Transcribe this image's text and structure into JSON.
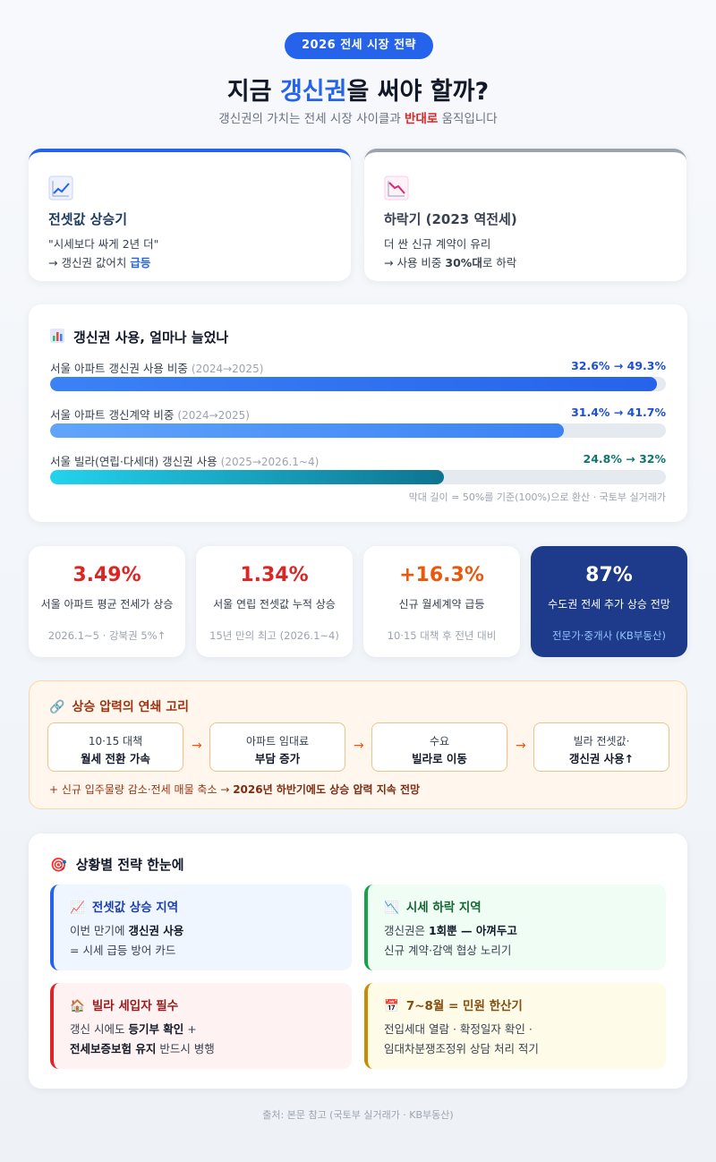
{
  "header": {
    "badge": "2026 전세 시장 전략",
    "title_a": "지금 ",
    "title_hl": "갱신권",
    "title_b": "을 써야 할까?",
    "subtitle_a": "갱신권의 가치는 전세 시장 사이클과 ",
    "subtitle_red": "반대로",
    "subtitle_b": " 움직입니다"
  },
  "phases": [
    {
      "icon": "chart-up-icon",
      "title": "전셋값 상승기",
      "line1": "\"시세보다 싸게 2년 더\"",
      "line2_a": "→ 갱신권 값어치 ",
      "line2_b": "급등",
      "accent": "#2563eb"
    },
    {
      "icon": "chart-down-icon",
      "title": "하락기 (2023 역전세)",
      "line1": "더 싼 신규 계약이 유리",
      "line2_a": "→ 사용 비중 ",
      "line2_b": "30%대",
      "line2_c": "로 하락",
      "accent": "#9ca3af"
    }
  ],
  "usage": {
    "icon": "bar-chart-icon",
    "title": "갱신권 사용, 얼마나 늘었나",
    "rows": [
      {
        "label": "서울 아파트 갱신권 사용 비중",
        "period": "(2024→2025)",
        "value": "32.6% → 49.3%",
        "fraction": 0.986,
        "color": "#1d4ed8"
      },
      {
        "label": "서울 아파트 갱신계약 비중",
        "period": "(2024→2025)",
        "value": "31.4% → 41.7%",
        "fraction": 0.834,
        "color": "#1d4ed8"
      },
      {
        "label": "서울 빌라(연립·다세대) 갱신권 사용",
        "period": "(2025→2026.1~4)",
        "value": "24.8% → 32%",
        "fraction": 0.64,
        "color": "#0f766e"
      }
    ],
    "note": "막대 길이 = 50%를 기준(100%)으로 환산 · 국토부 실거래가"
  },
  "stats": [
    {
      "value": "3.49%",
      "desc": "서울 아파트 평균 전세가 상승",
      "sub": "2026.1~5 · 강북권 5%↑",
      "color": "#dc2626"
    },
    {
      "value": "1.34%",
      "desc": "서울 연립 전셋값 누적 상승",
      "sub": "15년 만의 최고 (2026.1~4)",
      "color": "#dc2626"
    },
    {
      "value": "+16.3%",
      "desc": "신규 월세계약 급등",
      "sub": "10·15 대책 후 전년 대비",
      "color": "#ea580c"
    },
    {
      "value": "87%",
      "desc": "수도권 전세 추가 상승 전망",
      "sub": "전문가·중개사 (KB부동산)",
      "color": "#ffffff"
    }
  ],
  "chain": {
    "icon": "link-icon",
    "title": "상승 압력의 연쇄 고리",
    "steps": [
      {
        "a": "10·15 대책",
        "b": "월세 전환 가속"
      },
      {
        "a": "아파트 임대료",
        "b": "부담 증가"
      },
      {
        "a": "수요",
        "b": "빌라로 이동"
      },
      {
        "a": "빌라 전셋값·",
        "b": "갱신권 사용↑"
      }
    ],
    "arrow": "→",
    "foot_a": "+ 신규 입주물량 감소·전세 매물 축소 → ",
    "foot_b": "2026년 하반기에도 상승 압력 지속 전망"
  },
  "strategy": {
    "icon": "target-icon",
    "title": "상황별 전략 한눈에",
    "boxes": [
      {
        "icon": "chart-up-icon",
        "title": "전셋값 상승 지역",
        "t1_a": "이번 만기에 ",
        "t1_b": "갱신권 사용",
        "t1_c": "",
        "t2_a": "= 시세 급등 방어 카드",
        "t2_b": "",
        "t2_c": "",
        "bg": "#eff6ff",
        "border": "#2563eb",
        "tcolor": "#1e40af"
      },
      {
        "icon": "chart-down-icon",
        "title": "시세 하락 지역",
        "t1_a": "갱신권은 ",
        "t1_b": "1회뿐 — 아껴두고",
        "t1_c": "",
        "t2_a": "신규 계약·감액 협상 노리기",
        "t2_b": "",
        "t2_c": "",
        "bg": "#f0fdf4",
        "border": "#16a34a",
        "tcolor": "#166534"
      },
      {
        "icon": "house-icon",
        "title": "빌라 세입자 필수",
        "t1_a": "갱신 시에도 ",
        "t1_b": "등기부 확인",
        "t1_c": " +",
        "t2_a": "",
        "t2_b": "전세보증보험 유지",
        "t2_c": " 반드시 병행",
        "bg": "#fef2f2",
        "border": "#dc2626",
        "tcolor": "#991b1b"
      },
      {
        "icon": "calendar-icon",
        "title": "7~8월 = 민원 한산기",
        "t1_a": "전입세대 열람 · 확정일자 확인 ·",
        "t1_b": "",
        "t1_c": "",
        "t2_a": "임대차분쟁조정위 상담 처리 적기",
        "t2_b": "",
        "t2_c": "",
        "bg": "#fefce8",
        "border": "#ca8a04",
        "tcolor": "#854d0e"
      }
    ]
  },
  "source": "출처: 본문 참고 (국토부 실거래가 · KB부동산)"
}
